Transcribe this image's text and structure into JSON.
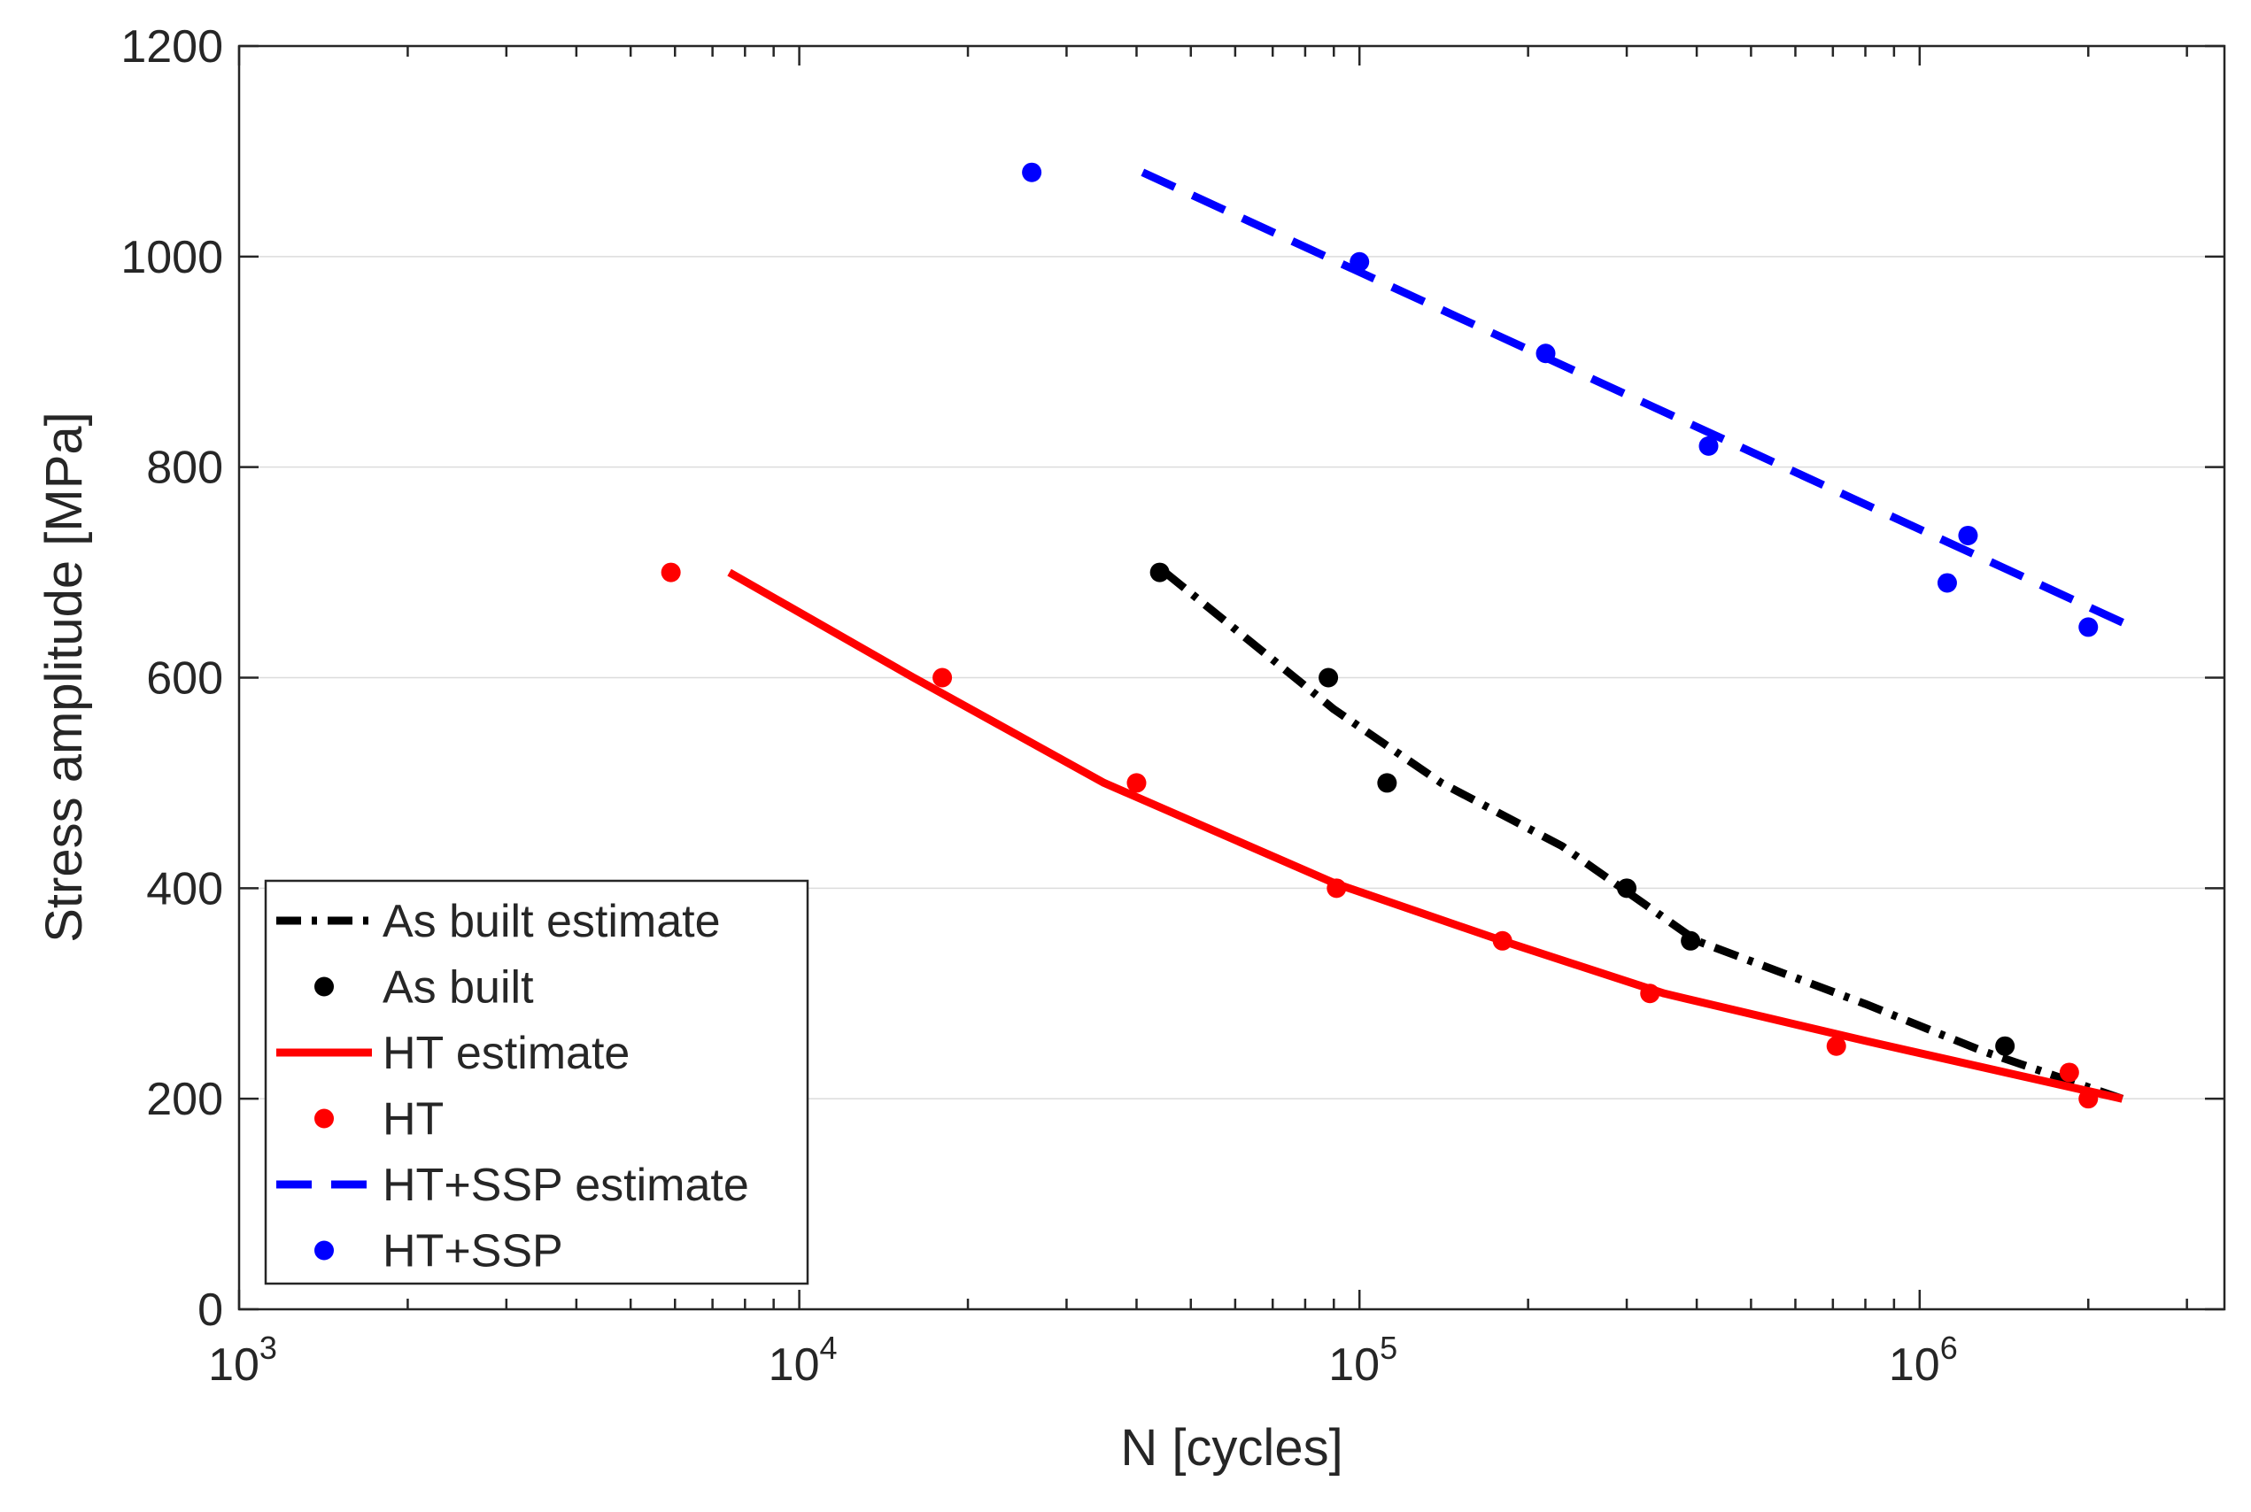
{
  "chart_data": {
    "type": "line",
    "xscale": "log",
    "xlabel": "N [cycles]",
    "ylabel": "Stress amplitude [MPa]",
    "xlim": [
      1000,
      3500000
    ],
    "ylim": [
      0,
      1200
    ],
    "yticks": [
      0,
      200,
      400,
      600,
      800,
      1000,
      1200
    ],
    "ytick_labels": [
      "0",
      "200",
      "400",
      "600",
      "800",
      "1000",
      "1200"
    ],
    "xticks": [
      {
        "value": 1000,
        "base": "10",
        "exp": "3"
      },
      {
        "value": 10000,
        "base": "10",
        "exp": "4"
      },
      {
        "value": 100000,
        "base": "10",
        "exp": "5"
      },
      {
        "value": 1000000,
        "base": "10",
        "exp": "6"
      }
    ],
    "grid": "horizontal",
    "legend_position": "bottom-left",
    "series": [
      {
        "name": "As built estimate",
        "kind": "line",
        "style": "dashdot",
        "color": "#000000",
        "points": [
          [
            45000,
            700
          ],
          [
            90000,
            570
          ],
          [
            140000,
            500
          ],
          [
            230000,
            440
          ],
          [
            400000,
            350
          ],
          [
            800000,
            290
          ],
          [
            1300000,
            245
          ],
          [
            2300000,
            200
          ]
        ]
      },
      {
        "name": "As built",
        "kind": "scatter",
        "color": "#000000",
        "points": [
          [
            44000,
            700
          ],
          [
            88000,
            600
          ],
          [
            112000,
            500
          ],
          [
            300000,
            400
          ],
          [
            390000,
            350
          ],
          [
            1420000,
            250
          ]
        ]
      },
      {
        "name": "HT estimate",
        "kind": "line",
        "style": "solid",
        "color": "#ff0000",
        "points": [
          [
            7500,
            700
          ],
          [
            16000,
            600
          ],
          [
            35000,
            500
          ],
          [
            90000,
            405
          ],
          [
            180000,
            350
          ],
          [
            350000,
            300
          ],
          [
            800000,
            255
          ],
          [
            2300000,
            200
          ]
        ]
      },
      {
        "name": "HT",
        "kind": "scatter",
        "color": "#ff0000",
        "points": [
          [
            5900,
            700
          ],
          [
            18000,
            600
          ],
          [
            40000,
            500
          ],
          [
            91000,
            400
          ],
          [
            180000,
            350
          ],
          [
            330000,
            300
          ],
          [
            710000,
            250
          ],
          [
            1850000,
            225
          ],
          [
            2000000,
            200
          ]
        ]
      },
      {
        "name": "HT+SSP estimate",
        "kind": "line",
        "style": "dashed",
        "color": "#0000ff",
        "points": [
          [
            41000,
            1080
          ],
          [
            2400000,
            648
          ]
        ]
      },
      {
        "name": "HT+SSP",
        "kind": "scatter",
        "color": "#0000ff",
        "points": [
          [
            26000,
            1080
          ],
          [
            100000,
            995
          ],
          [
            215000,
            908
          ],
          [
            420000,
            820
          ],
          [
            1120000,
            690
          ],
          [
            1220000,
            735
          ],
          [
            2000000,
            648
          ]
        ]
      }
    ]
  }
}
